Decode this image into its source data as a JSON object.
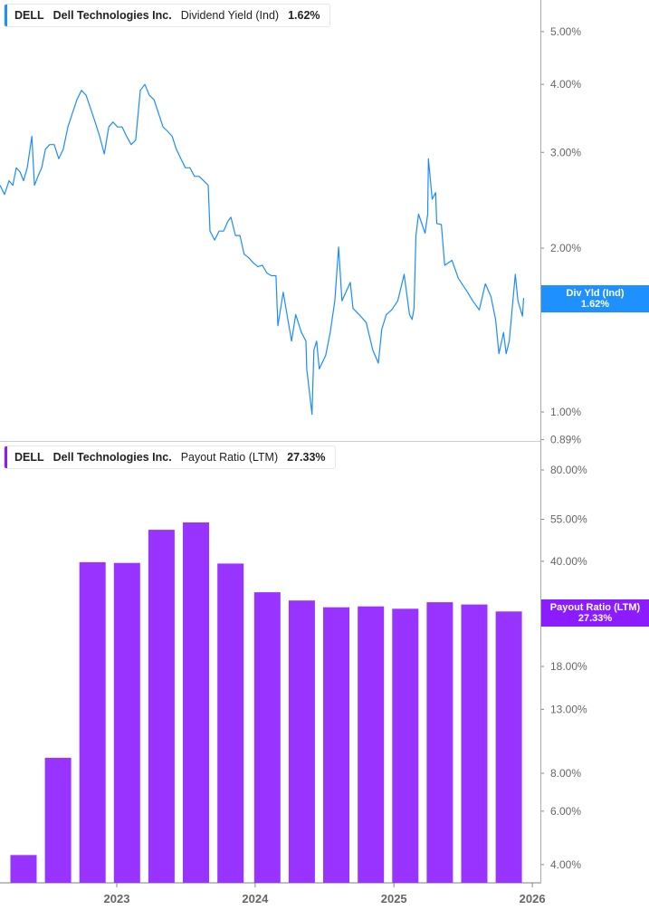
{
  "top_legend": {
    "ticker": "DELL",
    "company": "Dell Technologies Inc.",
    "metric": "Dividend Yield (Ind)",
    "value": "1.62%"
  },
  "bottom_legend": {
    "ticker": "DELL",
    "company": "Dell Technologies Inc.",
    "metric": "Payout Ratio (LTM)",
    "value": "27.33%"
  },
  "top_tag": {
    "label": "Div Yld (Ind)",
    "value": "1.62%"
  },
  "bottom_tag": {
    "label": "Payout Ratio (LTM)",
    "value": "27.33%"
  },
  "colors": {
    "dividend_line": "#1a8cff",
    "payout_bars": "#9933ff",
    "div_tag": "#1e90ff",
    "payout_tag": "#8a1cff"
  },
  "chart_data": [
    {
      "type": "line",
      "scale": "log",
      "series": [
        {
          "name": "Dividend Yield (Ind)",
          "points": [
            [
              "2022-02-27",
              2.61
            ],
            [
              "2022-03-11",
              2.51
            ],
            [
              "2022-03-23",
              2.66
            ],
            [
              "2022-04-02",
              2.61
            ],
            [
              "2022-04-11",
              2.81
            ],
            [
              "2022-04-21",
              2.76
            ],
            [
              "2022-04-30",
              2.66
            ],
            [
              "2022-05-10",
              2.81
            ],
            [
              "2022-05-22",
              3.21
            ],
            [
              "2022-05-29",
              2.61
            ],
            [
              "2022-06-07",
              2.71
            ],
            [
              "2022-06-17",
              2.81
            ],
            [
              "2022-06-27",
              3.04
            ],
            [
              "2022-07-08",
              3.1
            ],
            [
              "2022-07-20",
              3.1
            ],
            [
              "2022-08-01",
              2.92
            ],
            [
              "2022-08-13",
              3.04
            ],
            [
              "2022-08-25",
              3.34
            ],
            [
              "2022-09-06",
              3.54
            ],
            [
              "2022-09-18",
              3.75
            ],
            [
              "2022-09-30",
              3.9
            ],
            [
              "2022-10-12",
              3.82
            ],
            [
              "2022-10-24",
              3.61
            ],
            [
              "2022-11-05",
              3.41
            ],
            [
              "2022-11-17",
              3.21
            ],
            [
              "2022-11-29",
              2.98
            ],
            [
              "2022-12-11",
              3.34
            ],
            [
              "2022-12-22",
              3.41
            ],
            [
              "2023-01-03",
              3.34
            ],
            [
              "2023-01-15",
              3.34
            ],
            [
              "2023-01-27",
              3.21
            ],
            [
              "2023-02-08",
              3.1
            ],
            [
              "2023-02-20",
              3.16
            ],
            [
              "2023-03-04",
              3.9
            ],
            [
              "2023-03-16",
              4.0
            ],
            [
              "2023-03-28",
              3.82
            ],
            [
              "2023-04-09",
              3.75
            ],
            [
              "2023-04-21",
              3.54
            ],
            [
              "2023-05-03",
              3.34
            ],
            [
              "2023-05-15",
              3.28
            ],
            [
              "2023-05-27",
              3.21
            ],
            [
              "2023-06-07",
              3.04
            ],
            [
              "2023-06-19",
              2.92
            ],
            [
              "2023-07-01",
              2.81
            ],
            [
              "2023-07-13",
              2.81
            ],
            [
              "2023-07-25",
              2.71
            ],
            [
              "2023-08-06",
              2.71
            ],
            [
              "2023-08-18",
              2.66
            ],
            [
              "2023-08-30",
              2.61
            ],
            [
              "2023-09-04",
              2.15
            ],
            [
              "2023-09-16",
              2.07
            ],
            [
              "2023-09-28",
              2.15
            ],
            [
              "2023-10-10",
              2.15
            ],
            [
              "2023-10-21",
              2.24
            ],
            [
              "2023-10-29",
              2.28
            ],
            [
              "2023-11-10",
              2.11
            ],
            [
              "2023-11-22",
              2.11
            ],
            [
              "2023-12-03",
              1.95
            ],
            [
              "2023-12-15",
              1.92
            ],
            [
              "2023-12-27",
              1.88
            ],
            [
              "2024-01-08",
              1.85
            ],
            [
              "2024-01-20",
              1.86
            ],
            [
              "2024-02-01",
              1.8
            ],
            [
              "2024-02-13",
              1.78
            ],
            [
              "2024-02-25",
              1.78
            ],
            [
              "2024-03-01",
              1.44
            ],
            [
              "2024-03-15",
              1.66
            ],
            [
              "2024-04-06",
              1.35
            ],
            [
              "2024-04-17",
              1.51
            ],
            [
              "2024-05-02",
              1.4
            ],
            [
              "2024-05-14",
              1.35
            ],
            [
              "2024-05-16",
              1.2
            ],
            [
              "2024-05-30",
              0.99
            ],
            [
              "2024-06-04",
              1.3
            ],
            [
              "2024-06-11",
              1.35
            ],
            [
              "2024-06-18",
              1.2
            ],
            [
              "2024-07-05",
              1.27
            ],
            [
              "2024-07-17",
              1.4
            ],
            [
              "2024-07-29",
              1.6
            ],
            [
              "2024-08-08",
              2.01
            ],
            [
              "2024-08-17",
              1.6
            ],
            [
              "2024-09-08",
              1.73
            ],
            [
              "2024-09-15",
              1.55
            ],
            [
              "2024-10-01",
              1.51
            ],
            [
              "2024-10-20",
              1.46
            ],
            [
              "2024-11-06",
              1.3
            ],
            [
              "2024-11-21",
              1.23
            ],
            [
              "2024-11-30",
              1.42
            ],
            [
              "2024-12-12",
              1.51
            ],
            [
              "2024-12-26",
              1.54
            ],
            [
              "2025-01-11",
              1.6
            ],
            [
              "2025-01-28",
              1.79
            ],
            [
              "2025-02-11",
              1.51
            ],
            [
              "2025-02-18",
              1.48
            ],
            [
              "2025-02-23",
              1.55
            ],
            [
              "2025-02-28",
              2.11
            ],
            [
              "2025-03-07",
              2.31
            ],
            [
              "2025-03-24",
              2.13
            ],
            [
              "2025-03-31",
              2.31
            ],
            [
              "2025-04-02",
              2.92
            ],
            [
              "2025-04-12",
              2.46
            ],
            [
              "2025-04-21",
              2.53
            ],
            [
              "2025-04-24",
              2.22
            ],
            [
              "2025-05-06",
              2.21
            ],
            [
              "2025-05-15",
              1.86
            ],
            [
              "2025-06-03",
              1.9
            ],
            [
              "2025-06-20",
              1.76
            ],
            [
              "2025-07-14",
              1.66
            ],
            [
              "2025-07-28",
              1.6
            ],
            [
              "2025-08-14",
              1.54
            ],
            [
              "2025-08-30",
              1.72
            ],
            [
              "2025-09-14",
              1.63
            ],
            [
              "2025-09-26",
              1.48
            ],
            [
              "2025-10-05",
              1.28
            ],
            [
              "2025-10-17",
              1.4
            ],
            [
              "2025-10-24",
              1.28
            ],
            [
              "2025-11-01",
              1.35
            ],
            [
              "2025-11-17",
              1.79
            ],
            [
              "2025-11-24",
              1.6
            ],
            [
              "2025-12-06",
              1.5
            ],
            [
              "2025-12-09",
              1.62
            ]
          ]
        }
      ],
      "y_ticks": [
        "5.00%",
        "4.00%",
        "3.00%",
        "2.00%",
        "1.00%",
        "0.89%"
      ],
      "y_tick_values": [
        5,
        4,
        3,
        2,
        1,
        0.89
      ],
      "ylim": [
        0.88,
        5.8
      ],
      "grid": false
    },
    {
      "type": "bar",
      "scale": "log",
      "series": [
        {
          "name": "Payout Ratio (LTM)",
          "points": [
            [
              "2022-04-30",
              4.3
            ],
            [
              "2022-07-30",
              9.0
            ],
            [
              "2022-10-29",
              39.7
            ],
            [
              "2023-01-28",
              39.5
            ],
            [
              "2023-04-29",
              50.8
            ],
            [
              "2023-07-29",
              53.7
            ],
            [
              "2023-10-28",
              39.3
            ],
            [
              "2024-02-02",
              31.6
            ],
            [
              "2024-05-03",
              29.7
            ],
            [
              "2024-08-02",
              28.2
            ],
            [
              "2024-11-01",
              28.4
            ],
            [
              "2025-01-31",
              27.9
            ],
            [
              "2025-05-02",
              29.3
            ],
            [
              "2025-08-01",
              28.8
            ],
            [
              "2025-10-31",
              27.33
            ]
          ]
        }
      ],
      "y_ticks": [
        "80.00%",
        "55.00%",
        "40.00%",
        "25.00%",
        "18.00%",
        "13.00%",
        "8.00%",
        "6.00%",
        "4.00%"
      ],
      "y_tick_values": [
        80,
        55,
        40,
        25,
        18,
        13,
        8,
        6,
        4
      ],
      "ylim": [
        3.6,
        95
      ],
      "grid": false
    }
  ],
  "x_axis": {
    "ticks": [
      "2023",
      "2024",
      "2025",
      "2026"
    ]
  }
}
